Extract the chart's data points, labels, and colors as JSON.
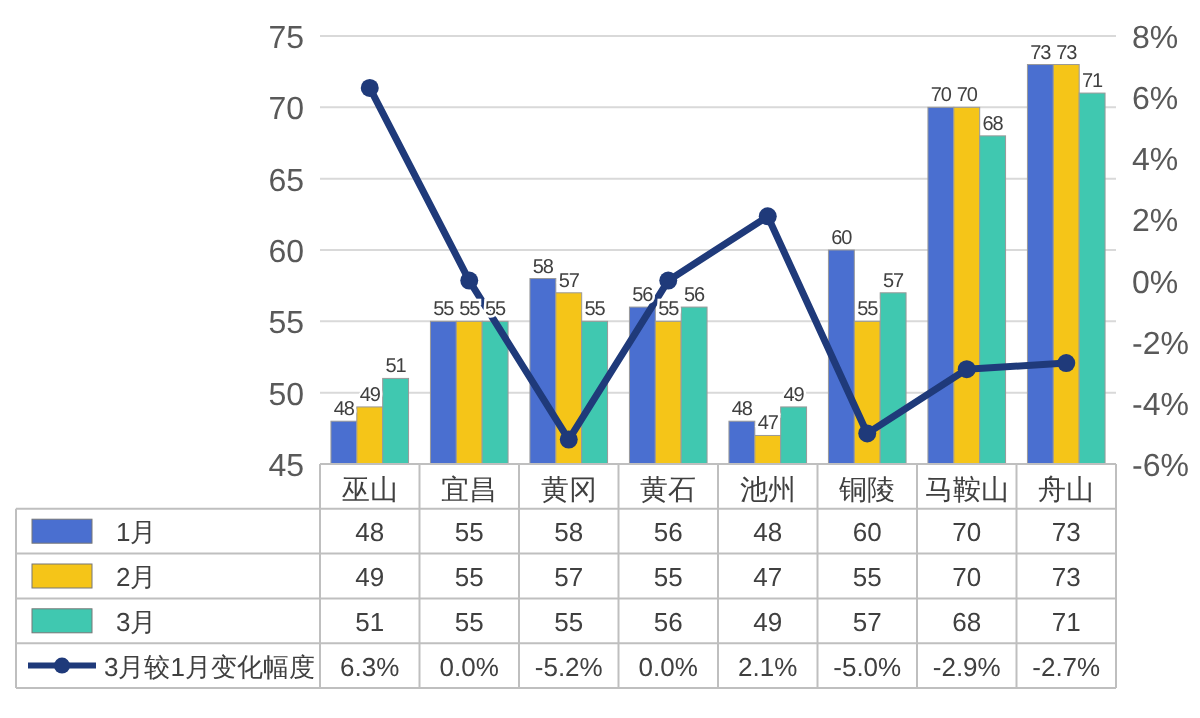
{
  "chart_data": {
    "type": "bar",
    "categories": [
      "巫山",
      "宜昌",
      "黄冈",
      "黄石",
      "池州",
      "铜陵",
      "马鞍山",
      "舟山"
    ],
    "series": [
      {
        "name": "1月",
        "color": "#4a6fd0",
        "values": [
          48,
          55,
          58,
          56,
          48,
          60,
          70,
          73
        ]
      },
      {
        "name": "2月",
        "color": "#f5c518",
        "values": [
          49,
          55,
          57,
          55,
          47,
          55,
          70,
          73
        ]
      },
      {
        "name": "3月",
        "color": "#40c8b0",
        "values": [
          51,
          55,
          55,
          56,
          49,
          57,
          68,
          71
        ]
      },
      {
        "name": "3月较1月变化幅度",
        "type": "line",
        "axis": "y2",
        "color": "#1f3a7a",
        "marker": "circle",
        "values": [
          6.3,
          0.0,
          -5.2,
          0.0,
          2.1,
          -5.0,
          -2.9,
          -2.7
        ],
        "value_labels": [
          "6.3%",
          "0.0%",
          "-5.2%",
          "0.0%",
          "2.1%",
          "-5.0%",
          "-2.9%",
          "-2.7%"
        ]
      }
    ],
    "ylim": [
      45,
      75
    ],
    "yticks": [
      45,
      50,
      55,
      60,
      65,
      70,
      75
    ],
    "y2lim": [
      -6,
      8
    ],
    "y2ticks": [
      {
        "value": -6,
        "label": "-6%"
      },
      {
        "value": -4,
        "label": "-4%"
      },
      {
        "value": -2,
        "label": "-2%"
      },
      {
        "value": 0,
        "label": "0%"
      },
      {
        "value": 2,
        "label": "2%"
      },
      {
        "value": 4,
        "label": "4%"
      },
      {
        "value": 6,
        "label": "6%"
      },
      {
        "value": 8,
        "label": "8%"
      }
    ],
    "annotations": [
      "48",
      "49",
      "51",
      "55",
      "55",
      "55",
      "58",
      "57",
      "55",
      "56",
      "55",
      "56",
      "48",
      "47",
      "49",
      "60",
      "55",
      "57",
      "70",
      "70",
      "68",
      "73",
      "73",
      "71"
    ],
    "grid": "y",
    "data_labels": true,
    "legend": "bottom"
  }
}
